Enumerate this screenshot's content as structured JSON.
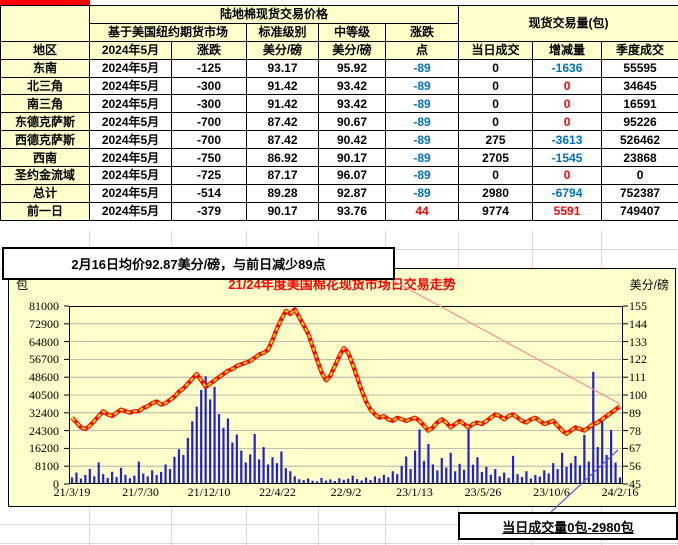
{
  "colors": {
    "accent_red": "#FF0000",
    "negative_blue": "#0070C0",
    "bar_blue": "#2121CE",
    "line_red": "#FF0000",
    "line_yellow": "#FFD700",
    "panel_yellow": "#FFFFCC",
    "grid_gray": "#A8A8A8",
    "leader_pink": "#FF8C8C",
    "leader_blue": "#5A5AE6"
  },
  "table": {
    "title": "陆地棉现货交易价格",
    "volume_group_header": "现货交易量(包)",
    "futures_header": "基于美国纽约期货市场",
    "grade_std_header": "标准级别",
    "grade_mid_header": "中等级",
    "change_header": "涨跌",
    "col_headers": [
      "地区",
      "2024年5月",
      "涨跌",
      "美分/磅",
      "美分/磅",
      "点",
      "当日成交",
      "增减量",
      "季度成交"
    ],
    "rows": [
      [
        "东南",
        "2024年5月",
        "-125",
        "93.17",
        "95.92",
        "-89",
        "0",
        "-1636",
        "55595"
      ],
      [
        "北三角",
        "2024年5月",
        "-300",
        "91.42",
        "93.42",
        "-89",
        "0",
        "0",
        "34645"
      ],
      [
        "南三角",
        "2024年5月",
        "-300",
        "91.42",
        "93.42",
        "-89",
        "0",
        "0",
        "16591"
      ],
      [
        "东德克萨斯",
        "2024年5月",
        "-700",
        "87.42",
        "90.67",
        "-89",
        "0",
        "0",
        "95226"
      ],
      [
        "西德克萨斯",
        "2024年5月",
        "-700",
        "87.42",
        "90.42",
        "-89",
        "275",
        "-3613",
        "526462"
      ],
      [
        "西南",
        "2024年5月",
        "-750",
        "86.92",
        "90.17",
        "-89",
        "2705",
        "-1545",
        "23868"
      ],
      [
        "圣约金流域",
        "2024年5月",
        "-725",
        "87.17",
        "96.07",
        "-89",
        "0",
        "0",
        "0"
      ],
      [
        "总计",
        "2024年5月",
        "-514",
        "89.28",
        "92.87",
        "-89",
        "2980",
        "-6794",
        "752387"
      ],
      [
        "前一日",
        "2024年5月",
        "-379",
        "90.17",
        "93.76",
        "44",
        "9774",
        "5591",
        "749407"
      ]
    ]
  },
  "note": "2月16日均价92.87美分/磅，与前日减少89点",
  "volume_box": "当日成交量0包-2980包",
  "chart_data": {
    "type": "bar",
    "title": "21/24年度美国棉花现货市场日交易走势",
    "left_axis_label": "包",
    "right_axis_label": "美分/磅",
    "left_ticks": [
      81000,
      72900,
      64800,
      56700,
      48600,
      40500,
      32400,
      24300,
      16200,
      8100,
      0
    ],
    "right_ticks": [
      155,
      144,
      133,
      122,
      111,
      100,
      89,
      78,
      67,
      56,
      45
    ],
    "x_tick_labels": [
      "21/3/19",
      "21/7/30",
      "21/12/10",
      "22/4/22",
      "22/9/2",
      "23/1/13",
      "23/5/26",
      "23/10/6",
      "24/2/16"
    ],
    "left_range": [
      0,
      81000
    ],
    "right_range": [
      45,
      155
    ],
    "grid": true,
    "legend": false,
    "series": [
      {
        "id": "daily_volume_bales",
        "type": "bar",
        "axis": "left",
        "values": [
          3000,
          5200,
          2500,
          4100,
          6800,
          3500,
          9800,
          4500,
          2800,
          5600,
          3200,
          7400,
          4200,
          2600,
          3800,
          10200,
          4800,
          3500,
          6200,
          4100,
          5500,
          8900,
          6800,
          12400,
          15800,
          13200,
          21000,
          28500,
          35200,
          42800,
          49000,
          38500,
          44200,
          31800,
          25600,
          29800,
          18900,
          22500,
          15200,
          9800,
          13500,
          22800,
          11200,
          16800,
          8900,
          12200,
          9500,
          14800,
          7200,
          5800,
          3500,
          2200,
          1800,
          2500,
          1500,
          1200,
          2800,
          1600,
          2100,
          1400,
          2600,
          1900,
          2400,
          3800,
          2200,
          1600,
          2900,
          1800,
          3500,
          2600,
          4200,
          3100,
          5800,
          4500,
          8200,
          12500,
          6800,
          15200,
          24800,
          10500,
          18200,
          8900,
          6200,
          11800,
          7500,
          14200,
          5800,
          9200,
          6500,
          25500,
          8800,
          12200,
          5500,
          7800,
          4200,
          6800,
          3500,
          5200,
          2800,
          12800,
          4500,
          3200,
          5800,
          2500,
          4100,
          3400,
          6200,
          4800,
          9500,
          6800,
          14200,
          7800,
          9500,
          12800,
          8500,
          22400,
          10200,
          51000,
          16800,
          28500,
          13200,
          24600,
          9774,
          2980
        ]
      },
      {
        "id": "price_cents_per_pound",
        "type": "line",
        "axis": "right",
        "values": [
          86,
          83,
          80,
          79,
          81,
          84,
          87,
          90,
          88,
          87,
          89,
          91,
          90,
          89,
          90,
          90,
          92,
          93,
          95,
          96,
          94,
          95,
          97,
          99,
          102,
          104,
          107,
          110,
          113,
          109,
          105,
          107,
          109,
          111,
          113,
          115,
          116,
          118,
          119,
          120,
          121,
          123,
          125,
          126,
          128,
          134,
          141,
          147,
          152,
          150,
          153,
          148,
          143,
          138,
          130,
          122,
          114,
          109,
          112,
          118,
          124,
          129,
          126,
          119,
          111,
          103,
          96,
          91,
          88,
          86,
          87,
          85,
          84,
          86,
          85,
          84,
          85,
          86,
          84,
          81,
          78,
          80,
          83,
          85,
          83,
          80,
          82,
          84,
          82,
          80,
          82,
          83,
          82,
          84,
          86,
          88,
          87,
          85,
          87,
          88,
          86,
          84,
          83,
          85,
          86,
          84,
          82,
          83,
          84,
          81,
          78,
          76,
          78,
          80,
          79,
          78,
          80,
          82,
          83,
          85,
          87,
          89,
          91,
          93
        ]
      }
    ]
  }
}
